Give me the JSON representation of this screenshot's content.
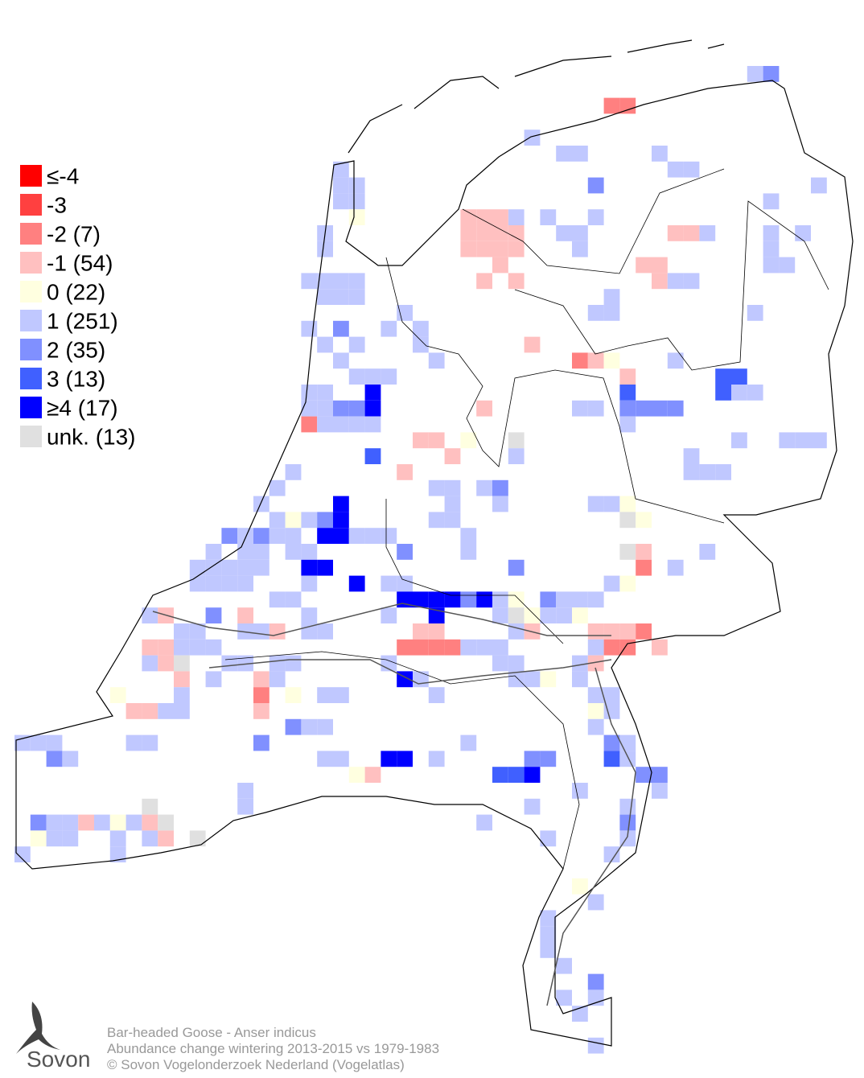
{
  "legend": {
    "items": [
      {
        "label": "≤-4",
        "color": "#ff0000"
      },
      {
        "label": "-3",
        "color": "#ff4040"
      },
      {
        "label": "-2 (7)",
        "color": "#ff8080"
      },
      {
        "label": "-1 (54)",
        "color": "#ffc0c0"
      },
      {
        "label": " 0 (22)",
        "color": "#ffffe0"
      },
      {
        "label": " 1 (251)",
        "color": "#c0c8ff"
      },
      {
        "label": " 2 (35)",
        "color": "#8090ff"
      },
      {
        "label": " 3 (13)",
        "color": "#4060ff"
      },
      {
        "label": "≥4 (17)",
        "color": "#0000ff"
      },
      {
        "label": "unk. (13)",
        "color": "#e0e0e0"
      }
    ]
  },
  "caption": {
    "species": "Bar-headed Goose - Anser indicus",
    "description": "Abundance change wintering  2013-2015 vs 1979-1983",
    "copyright": "© Sovon Vogelonderzoek Nederland (Vogelatlas)"
  },
  "logo": {
    "text": "Sovon"
  }
}
